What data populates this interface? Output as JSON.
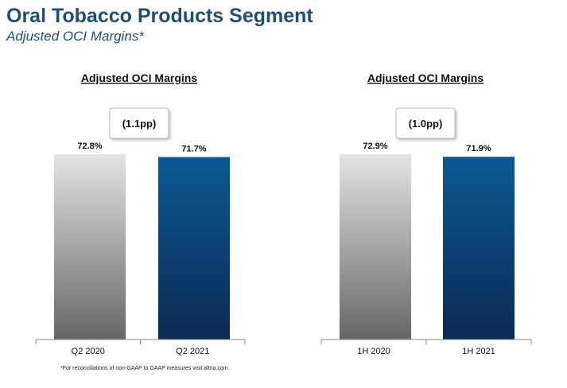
{
  "header": {
    "title": "Oral Tobacco Products Segment",
    "subtitle": "Adjusted OCI Margins*"
  },
  "footnote": "*For reconciliations of non-GAAP to GAAP measures visit altria.com.",
  "colors": {
    "title": "#1f4e79",
    "bar_prior_top": "#e4e4e4",
    "bar_prior_bottom": "#666666",
    "bar_current_top": "#0a5a94",
    "bar_current_bottom": "#0b2a52"
  },
  "chart_data": [
    {
      "type": "bar",
      "title": "Adjusted OCI Margins",
      "categories": [
        "Q2 2020",
        "Q2 2021"
      ],
      "values": [
        72.8,
        71.7
      ],
      "value_labels": [
        "72.8%",
        "71.7%"
      ],
      "change_label": "(1.1pp)",
      "ylim": [
        0,
        72.8
      ]
    },
    {
      "type": "bar",
      "title": "Adjusted OCI Margins",
      "categories": [
        "1H 2020",
        "1H 2021"
      ],
      "values": [
        72.9,
        71.9
      ],
      "value_labels": [
        "72.9%",
        "71.9%"
      ],
      "change_label": "(1.0pp)",
      "ylim": [
        0,
        72.9
      ]
    }
  ]
}
